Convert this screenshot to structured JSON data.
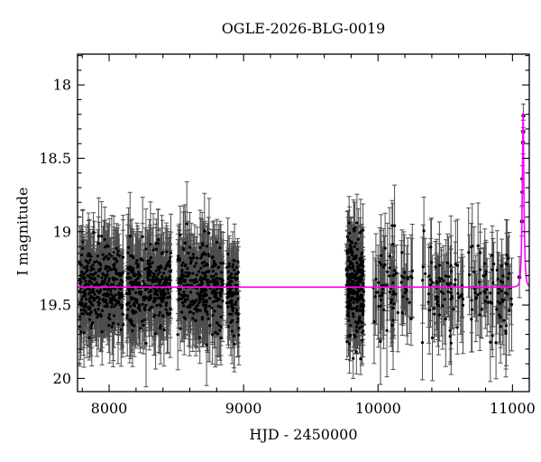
{
  "figure": {
    "background": "#ffffff"
  },
  "chart_data": {
    "type": "scatter",
    "title": "OGLE-2026-BLG-0019",
    "xlabel": "HJD - 2450000",
    "ylabel": "I magnitude",
    "xlim": [
      7765,
      11125
    ],
    "ylim_mag_bottom_top": [
      20.09,
      17.79
    ],
    "y_axis_inverted": true,
    "grid": false,
    "legend": "none",
    "x_major_ticks": [
      8000,
      9000,
      10000,
      11000
    ],
    "x_tick_labels": [
      "8000",
      "9000",
      "10000",
      "11000"
    ],
    "x_minor_step": 200,
    "y_major_ticks": [
      18,
      18.5,
      19,
      19.5,
      20
    ],
    "y_tick_labels": [
      "18",
      "18.5",
      "19",
      "19.5",
      "20"
    ],
    "y_minor_step": 0.1,
    "colors": {
      "background": "#ffffff",
      "frame": "#000000",
      "points": "#000000",
      "error_bars": "#4d4d4d",
      "model_curve": "#ff00ff",
      "text": "#000000"
    },
    "model": {
      "kind": "paczynski_point_lens",
      "t0": 11079,
      "tE": 12,
      "u0": 0.35,
      "baseline_mag": 19.378,
      "peak_mag_approx": 18.19
    },
    "clusters": [
      {
        "t_start": 7780,
        "t_end": 8110,
        "n": 320,
        "mean_mag": 19.38,
        "sigma": 0.135,
        "err_min": 0.13,
        "err_max": 0.3
      },
      {
        "t_start": 8130,
        "t_end": 8460,
        "n": 320,
        "mean_mag": 19.38,
        "sigma": 0.135,
        "err_min": 0.13,
        "err_max": 0.3
      },
      {
        "t_start": 8510,
        "t_end": 8850,
        "n": 300,
        "mean_mag": 19.38,
        "sigma": 0.14,
        "err_min": 0.13,
        "err_max": 0.3
      },
      {
        "t_start": 8875,
        "t_end": 8965,
        "n": 90,
        "mean_mag": 19.4,
        "sigma": 0.14,
        "err_min": 0.12,
        "err_max": 0.26
      },
      {
        "t_start": 9765,
        "t_end": 9895,
        "n": 270,
        "mean_mag": 19.38,
        "sigma": 0.175,
        "err_min": 0.1,
        "err_max": 0.24
      },
      {
        "t_start": 9960,
        "t_end": 10260,
        "n": 70,
        "mean_mag": 19.38,
        "sigma": 0.15,
        "err_min": 0.15,
        "err_max": 0.34
      },
      {
        "t_start": 10320,
        "t_end": 10640,
        "n": 70,
        "mean_mag": 19.4,
        "sigma": 0.15,
        "err_min": 0.15,
        "err_max": 0.34
      },
      {
        "t_start": 10670,
        "t_end": 10995,
        "n": 75,
        "mean_mag": 19.4,
        "sigma": 0.15,
        "err_min": 0.14,
        "err_max": 0.32
      }
    ],
    "peak_points": [
      {
        "t": 11052,
        "mag": 19.31,
        "err": 0.14
      },
      {
        "t": 11070,
        "mag": 18.93,
        "err": 0.1
      },
      {
        "t": 11074,
        "mag": 18.73,
        "err": 0.09
      },
      {
        "t": 11075,
        "mag": 18.64,
        "err": 0.09
      },
      {
        "t": 11079,
        "mag": 18.39,
        "err": 0.08
      },
      {
        "t": 11080,
        "mag": 18.32,
        "err": 0.08
      },
      {
        "t": 11081,
        "mag": 18.21,
        "err": 0.08
      }
    ]
  }
}
